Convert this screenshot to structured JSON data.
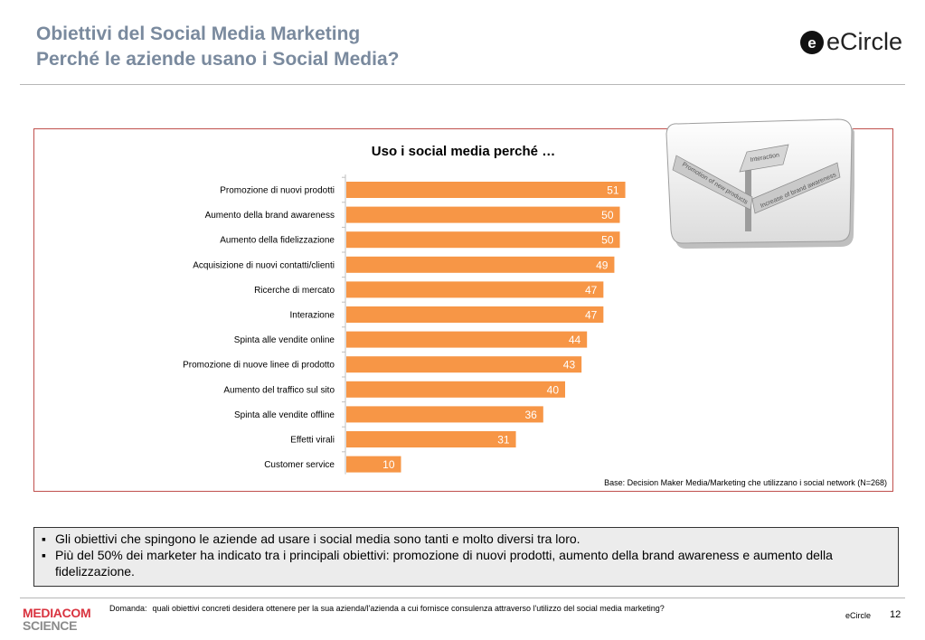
{
  "header": {
    "title_line1": "Obiettivi del Social Media Marketing",
    "title_line2": "Perché le aziende usano i Social Media?",
    "logo_text": "eCircle"
  },
  "colors": {
    "bar": "#f79646",
    "frame": "#c0504d",
    "title": "#7a8a9e",
    "bullet_bg": "#ececec"
  },
  "chart_data": {
    "type": "bar",
    "orientation": "horizontal",
    "title": "Uso i social media perché …",
    "categories": [
      "Promozione di nuovi prodotti",
      "Aumento della brand awareness",
      "Aumento della fidelizzazione",
      "Acquisizione di nuovi contatti/clienti",
      "Ricerche di mercato",
      "Interazione",
      "Spinta alle vendite online",
      "Promozione di nuove linee di prodotto",
      "Aumento del traffico sul sito",
      "Spinta alle vendite offline",
      "Effetti virali",
      "Customer service"
    ],
    "values": [
      51,
      50,
      50,
      49,
      47,
      47,
      44,
      43,
      40,
      36,
      31,
      10
    ],
    "data_labels": true,
    "grid": false,
    "legend": "none",
    "xlim": [
      0,
      100
    ]
  },
  "base_note": "Base: Decision Maker Media/Marketing che utilizzano i social network (N=268)",
  "image_signs": [
    "Promotion of new products",
    "Interaction",
    "Increase of brand awareness"
  ],
  "bullets": [
    "Gli obiettivi che spingono le aziende ad usare i social media sono tanti e molto diversi tra loro.",
    "Più del 50% dei marketer ha indicato tra i principali obiettivi: promozione di nuovi prodotti, aumento della brand awareness e aumento della fidelizzazione."
  ],
  "footer": {
    "logo_line1": "MEDIACOM",
    "logo_line2": "SCIENCE",
    "question_label": "Domanda:",
    "question_text": "quali obiettivi concreti desidera ottenere per la sua azienda/l'azienda a cui fornisce consulenza attraverso l'utilizzo del social media marketing?",
    "brand": "eCircle",
    "page_number": "12"
  }
}
